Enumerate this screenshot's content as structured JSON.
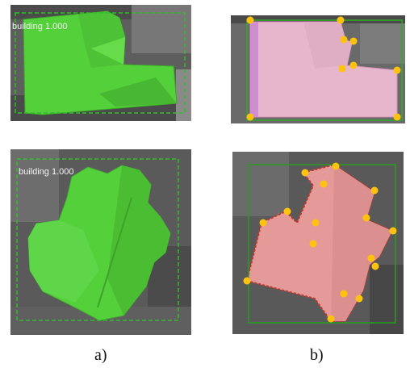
{
  "figure": {
    "caption_a": "a)",
    "caption_b": "b)",
    "detection_label": "building 1.000"
  },
  "colors": {
    "mask_green": "#54d13a",
    "box_green": "#33bb2a",
    "mask_pink": "#e6b7cc",
    "mask_red": "#e59a9a",
    "polygon_red": "#c0392b",
    "vertex_yellow": "#ffc20e",
    "aerial_dark": "#555555"
  },
  "panels": [
    {
      "id": "a-top",
      "kind": "mask-with-label"
    },
    {
      "id": "b-top",
      "kind": "polygon-with-vertices"
    },
    {
      "id": "a-bottom",
      "kind": "mask-with-label"
    },
    {
      "id": "b-bottom",
      "kind": "polygon-with-vertices"
    }
  ]
}
